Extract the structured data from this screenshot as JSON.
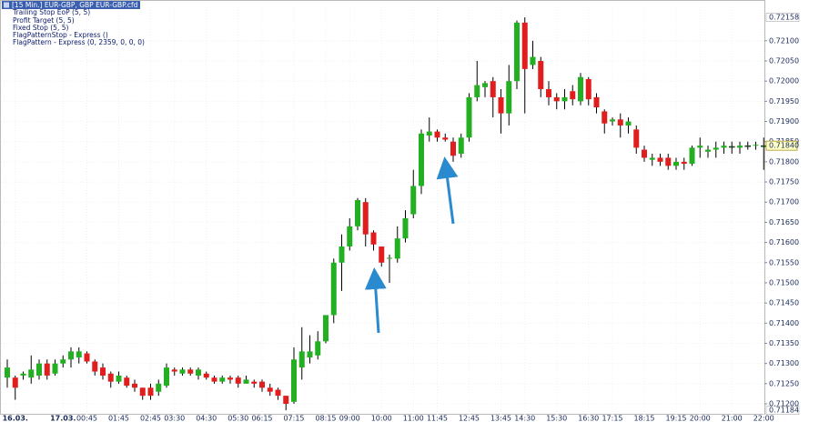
{
  "chart_data": {
    "type": "candlestick",
    "title": "[15 Min.] EUR-GBP, GBP  EUR-GBP.cfd WHS Flag",
    "indicators": [
      "Trailing Stop EoP  (5, 5)",
      "Profit Target  (5, 5)",
      "Fixed Stop  (5, 5)",
      "FlagPatternStop - Express  ()",
      "FlagPattern - Express  (0, 2359, 0, 0, 0)"
    ],
    "categories": [
      null,
      "16.03.",
      null,
      null,
      null,
      null,
      null,
      "17.03.",
      null,
      null,
      "00:45",
      null,
      null,
      null,
      "01:45",
      null,
      null,
      null,
      "02:45",
      null,
      null,
      "03:30",
      null,
      null,
      null,
      "04:30",
      null,
      null,
      null,
      "05:30",
      null,
      null,
      "06:15",
      null,
      null,
      null,
      "07:15",
      null,
      null,
      null,
      "08:15",
      null,
      null,
      "09:00",
      null,
      null,
      null,
      "10:00",
      null,
      null,
      null,
      "11:00",
      null,
      null,
      "11:45",
      null,
      null,
      null,
      "12:45",
      null,
      null,
      null,
      "13:45",
      null,
      null,
      "14:30",
      null,
      null,
      null,
      "15:30",
      null,
      null,
      null,
      "16:30",
      null,
      null,
      "17:15",
      null,
      null,
      null,
      "18:15",
      null,
      null,
      null,
      "19:15",
      null,
      null,
      "20:00",
      null,
      null,
      null,
      "21:00",
      null,
      null,
      null,
      "22:00"
    ],
    "open": [
      0.71265,
      0.71265,
      0.7127,
      0.71265,
      0.7127,
      0.713,
      0.71275,
      0.713,
      0.7131,
      0.71315,
      0.71325,
      0.71305,
      0.7129,
      0.71275,
      0.71255,
      0.71265,
      0.7125,
      0.7124,
      0.7124,
      0.7123,
      0.71245,
      0.71285,
      0.71275,
      0.71285,
      0.7127,
      0.71275,
      0.71265,
      0.71255,
      0.71265,
      0.71265,
      0.7125,
      0.71255,
      0.71255,
      0.7124,
      0.71235,
      0.7122,
      0.71205,
      0.7129,
      0.71315,
      0.7132,
      0.71355,
      0.7142,
      0.7155,
      0.7159,
      0.7164,
      0.717,
      0.71625,
      0.7159,
      0.7156,
      0.7156,
      0.7161,
      0.7167,
      0.7174,
      0.71865,
      0.71875,
      0.7186,
      0.7185,
      0.7182,
      0.7186,
      0.7196,
      0.71985,
      0.72,
      0.7196,
      0.7192,
      0.72,
      0.72145,
      0.7204,
      0.7205,
      0.7198,
      0.7196,
      0.7195,
      0.71975,
      0.7195,
      0.72005,
      0.7196,
      0.71925,
      0.719,
      0.71905,
      0.7189,
      0.7188,
      0.7183,
      0.71805,
      0.7181,
      0.7181,
      0.7179,
      0.718,
      0.71795,
      0.71835,
      0.71825,
      0.7183,
      0.71835,
      0.71838,
      0.71835,
      0.7184,
      0.7184,
      0.7184
    ],
    "high": [
      0.7131,
      0.7127,
      0.7128,
      0.7132,
      0.7131,
      0.7131,
      0.7131,
      0.7132,
      0.7134,
      0.7134,
      0.7133,
      0.7131,
      0.713,
      0.7128,
      0.7128,
      0.7127,
      0.7126,
      0.7124,
      0.7125,
      0.7126,
      0.713,
      0.7129,
      0.7129,
      0.7129,
      0.7129,
      0.7128,
      0.7127,
      0.7127,
      0.7127,
      0.7127,
      0.7127,
      0.7126,
      0.7126,
      0.7125,
      0.7124,
      0.7122,
      0.7134,
      0.7139,
      0.7137,
      0.7138,
      0.7142,
      0.7156,
      0.7162,
      0.7166,
      0.7171,
      0.7171,
      0.7163,
      0.7159,
      0.7157,
      0.7164,
      0.7168,
      0.7178,
      0.7188,
      0.7191,
      0.7188,
      0.7187,
      0.7186,
      0.7187,
      0.7197,
      0.7205,
      0.72,
      0.7201,
      0.7198,
      0.7204,
      0.7215,
      0.72158,
      0.721,
      0.7206,
      0.72,
      0.7197,
      0.7198,
      0.7199,
      0.7202,
      0.7201,
      0.7197,
      0.7193,
      0.7191,
      0.7192,
      0.7191,
      0.7189,
      0.7184,
      0.7182,
      0.7182,
      0.7182,
      0.7181,
      0.7181,
      0.7184,
      0.7186,
      0.7184,
      0.7185,
      0.7185,
      0.7185,
      0.7185,
      0.7185,
      0.7185,
      0.7186
    ],
    "low": [
      0.7124,
      0.7121,
      0.7126,
      0.7125,
      0.7126,
      0.7126,
      0.7127,
      0.7129,
      0.7129,
      0.713,
      0.713,
      0.7127,
      0.7126,
      0.7124,
      0.7125,
      0.7124,
      0.7123,
      0.7121,
      0.7121,
      0.7122,
      0.7124,
      0.7127,
      0.7127,
      0.7127,
      0.7126,
      0.7126,
      0.7125,
      0.7125,
      0.7125,
      0.7124,
      0.7125,
      0.7124,
      0.7123,
      0.7122,
      0.7121,
      0.71184,
      0.712,
      0.7126,
      0.713,
      0.7131,
      0.7135,
      0.714,
      0.7148,
      0.7158,
      0.7163,
      0.7159,
      0.7158,
      0.7154,
      0.715,
      0.7155,
      0.716,
      0.7166,
      0.7172,
      0.7185,
      0.7185,
      0.7185,
      0.718,
      0.7181,
      0.7185,
      0.7195,
      0.7196,
      0.7191,
      0.7187,
      0.7189,
      0.7198,
      0.7192,
      0.7203,
      0.7196,
      0.7194,
      0.7193,
      0.7193,
      0.7194,
      0.7194,
      0.7194,
      0.7192,
      0.7187,
      0.7189,
      0.7186,
      0.7187,
      0.7182,
      0.718,
      0.7179,
      0.7179,
      0.7178,
      0.7178,
      0.7178,
      0.7179,
      0.7181,
      0.7181,
      0.7181,
      0.7182,
      0.7182,
      0.7182,
      0.7183,
      0.7183,
      0.7178
    ],
    "close": [
      0.7129,
      0.7124,
      0.71275,
      0.71285,
      0.713,
      0.7127,
      0.713,
      0.7131,
      0.7133,
      0.7133,
      0.71305,
      0.7128,
      0.7127,
      0.71255,
      0.7127,
      0.71245,
      0.7124,
      0.7122,
      0.7122,
      0.7125,
      0.7129,
      0.7128,
      0.71285,
      0.71275,
      0.71285,
      0.71265,
      0.71255,
      0.71265,
      0.7126,
      0.7125,
      0.7126,
      0.7125,
      0.7124,
      0.7123,
      0.7122,
      0.712,
      0.7131,
      0.7133,
      0.7133,
      0.71355,
      0.7142,
      0.7155,
      0.7159,
      0.7164,
      0.71705,
      0.7162,
      0.71595,
      0.7155,
      0.71562,
      0.7161,
      0.7166,
      0.7174,
      0.7187,
      0.71875,
      0.7186,
      0.71855,
      0.71815,
      0.7186,
      0.7196,
      0.7199,
      0.71995,
      0.7196,
      0.7192,
      0.72,
      0.72145,
      0.7203,
      0.7206,
      0.7198,
      0.7196,
      0.7195,
      0.7196,
      0.71955,
      0.7201,
      0.71955,
      0.71935,
      0.71895,
      0.71905,
      0.7189,
      0.719,
      0.71835,
      0.7181,
      0.7181,
      0.718,
      0.7179,
      0.718,
      0.71795,
      0.71835,
      0.7184,
      0.7183,
      0.71835,
      0.7184,
      0.71838,
      0.7184,
      0.7184,
      0.71842,
      0.7184
    ],
    "up_color": "#22b022",
    "down_color": "#e01e1e",
    "wick_color": "#000000",
    "ylim": [
      0.71173,
      0.72183
    ],
    "yticks": [
      {
        "value": 0.712,
        "label": "0.71200"
      },
      {
        "value": 0.7125,
        "label": "0.71250"
      },
      {
        "value": 0.713,
        "label": "0.71300"
      },
      {
        "value": 0.7135,
        "label": "0.71350"
      },
      {
        "value": 0.714,
        "label": "0.71400"
      },
      {
        "value": 0.7145,
        "label": "0.71450"
      },
      {
        "value": 0.715,
        "label": "0.71500"
      },
      {
        "value": 0.7155,
        "label": "0.71550"
      },
      {
        "value": 0.716,
        "label": "0.71600"
      },
      {
        "value": 0.7165,
        "label": "0.71650"
      },
      {
        "value": 0.717,
        "label": "0.71700"
      },
      {
        "value": 0.7175,
        "label": "0.71750"
      },
      {
        "value": 0.718,
        "label": "0.71800"
      },
      {
        "value": 0.7185,
        "label": "0.71850"
      },
      {
        "value": 0.719,
        "label": "0.71900"
      },
      {
        "value": 0.7195,
        "label": "0.71950"
      },
      {
        "value": 0.72,
        "label": "0.72000"
      },
      {
        "value": 0.7205,
        "label": "0.72050"
      },
      {
        "value": 0.721,
        "label": "0.72100"
      }
    ],
    "high_marker": 0.72158,
    "low_marker": 0.71184,
    "last_price": {
      "value": 0.7184,
      "label": "0.71840"
    },
    "grid": true
  }
}
